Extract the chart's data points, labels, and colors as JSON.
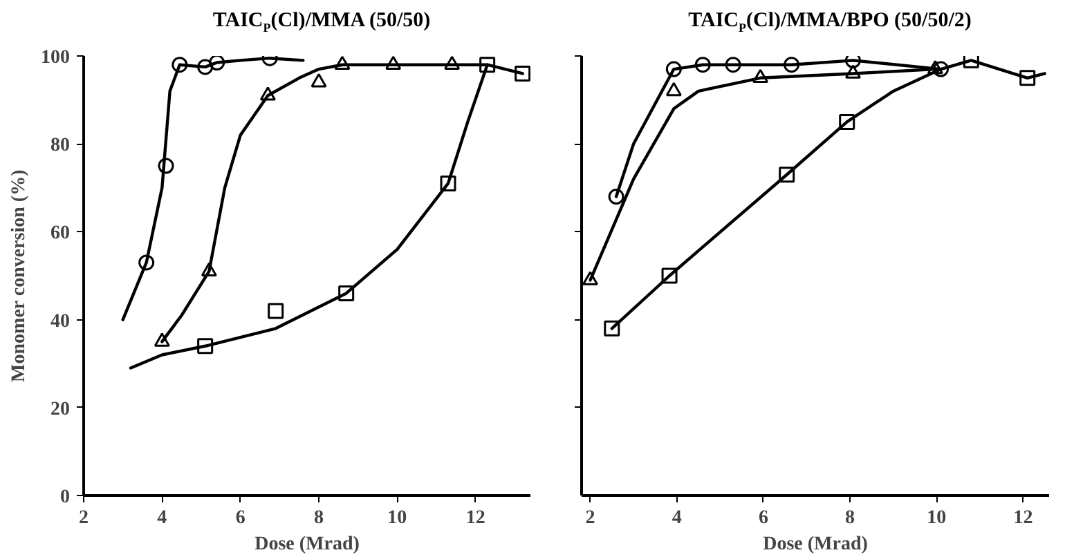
{
  "chart_data": [
    {
      "type": "line",
      "title": "TAIC$_{P}$(Cl)/MMA (50/50)",
      "xlabel": "Dose (Mrad)",
      "ylabel": "Monomer conversion (%)",
      "xlim": [
        2,
        13.4
      ],
      "ylim": [
        0,
        100
      ],
      "xticks": [
        2,
        4,
        6,
        8,
        10,
        12
      ],
      "yticks": [
        0,
        20,
        40,
        60,
        80,
        100
      ],
      "grid": false,
      "series": [
        {
          "type": "line",
          "color": "#000000",
          "x": [
            3.0,
            3.6,
            4.0,
            4.2,
            4.45,
            5.1,
            5.4,
            6.0,
            6.75,
            7.6
          ],
          "values": [
            40,
            53,
            70,
            92,
            98,
            97.5,
            98.5,
            99,
            99.5,
            99
          ]
        },
        {
          "type": "line",
          "color": "#000000",
          "x": [
            4.0,
            4.5,
            5.2,
            5.6,
            6.0,
            6.7,
            7.5,
            8.0,
            8.6,
            9.9,
            11.4,
            12.3
          ],
          "values": [
            35,
            41,
            51,
            70,
            82,
            91,
            95,
            97,
            98,
            98,
            98,
            98
          ]
        },
        {
          "type": "line",
          "color": "#000000",
          "x": [
            3.2,
            4.0,
            5.1,
            6.9,
            8.7,
            10.0,
            11.3,
            11.8,
            12.3,
            13.2
          ],
          "values": [
            29,
            32,
            34,
            38,
            46,
            56,
            71,
            85,
            98,
            96
          ]
        },
        {
          "type": "scatter",
          "marker": "circle",
          "color": "#000000",
          "x": [
            3.6,
            4.1,
            4.45,
            5.1,
            5.4,
            6.75
          ],
          "values": [
            53,
            75,
            98,
            97.5,
            98.5,
            99.5
          ]
        },
        {
          "type": "scatter",
          "marker": "triangle",
          "color": "#000000",
          "x": [
            4.0,
            5.2,
            6.7,
            8.0,
            8.6,
            9.9,
            11.4
          ],
          "values": [
            35,
            51,
            91,
            94,
            98,
            98,
            98
          ]
        },
        {
          "type": "scatter",
          "marker": "square",
          "color": "#000000",
          "x": [
            5.1,
            6.9,
            8.7,
            11.3,
            12.3,
            13.2
          ],
          "values": [
            34,
            42,
            46,
            71,
            98,
            96
          ]
        }
      ]
    },
    {
      "type": "line",
      "title": "TAIC$_{P}$(Cl)/MMA/BPO (50/50/2)",
      "xlabel": "Dose (Mrad)",
      "xlim": [
        1.8,
        12.6
      ],
      "ylim": [
        0,
        100
      ],
      "xticks": [
        2,
        4,
        6,
        8,
        10,
        12
      ],
      "yticks": [
        {
          "value": 20,
          "label": null
        },
        {
          "value": 40,
          "label": null
        },
        {
          "value": 60,
          "label": null
        },
        {
          "value": 80,
          "label": null
        },
        {
          "value": 100,
          "label": null
        }
      ],
      "tick_labels": "x",
      "grid": false,
      "series": [
        {
          "type": "line",
          "color": "#000000",
          "x": [
            2.6,
            3.0,
            3.93,
            4.6,
            5.3,
            6.65,
            8.07,
            10.1
          ],
          "values": [
            68,
            80,
            97,
            98,
            98,
            98,
            99,
            97
          ]
        },
        {
          "type": "line",
          "color": "#000000",
          "x": [
            2.0,
            3.0,
            3.93,
            4.5,
            5.93,
            8.07,
            9.97
          ],
          "values": [
            49,
            72,
            88,
            92,
            95,
            96,
            97
          ]
        },
        {
          "type": "line",
          "color": "#000000",
          "x": [
            2.5,
            3.83,
            6.54,
            7.93,
            9.0,
            10.1,
            10.8,
            12.1,
            12.5
          ],
          "values": [
            38,
            50,
            73,
            85,
            92,
            97,
            99,
            95,
            96
          ]
        },
        {
          "type": "scatter",
          "marker": "circle",
          "color": "#000000",
          "x": [
            2.6,
            3.93,
            4.6,
            5.3,
            6.65,
            8.07,
            10.1
          ],
          "values": [
            68,
            97,
            98,
            98,
            98,
            99,
            97
          ]
        },
        {
          "type": "scatter",
          "marker": "triangle",
          "color": "#000000",
          "x": [
            2.0,
            3.93,
            5.93,
            8.07,
            9.97
          ],
          "values": [
            49,
            92,
            95,
            96,
            97
          ]
        },
        {
          "type": "scatter",
          "marker": "square",
          "color": "#000000",
          "x": [
            2.5,
            3.83,
            6.54,
            7.93,
            10.8,
            12.1
          ],
          "values": [
            38,
            50,
            73,
            85,
            99,
            95
          ]
        }
      ]
    }
  ]
}
